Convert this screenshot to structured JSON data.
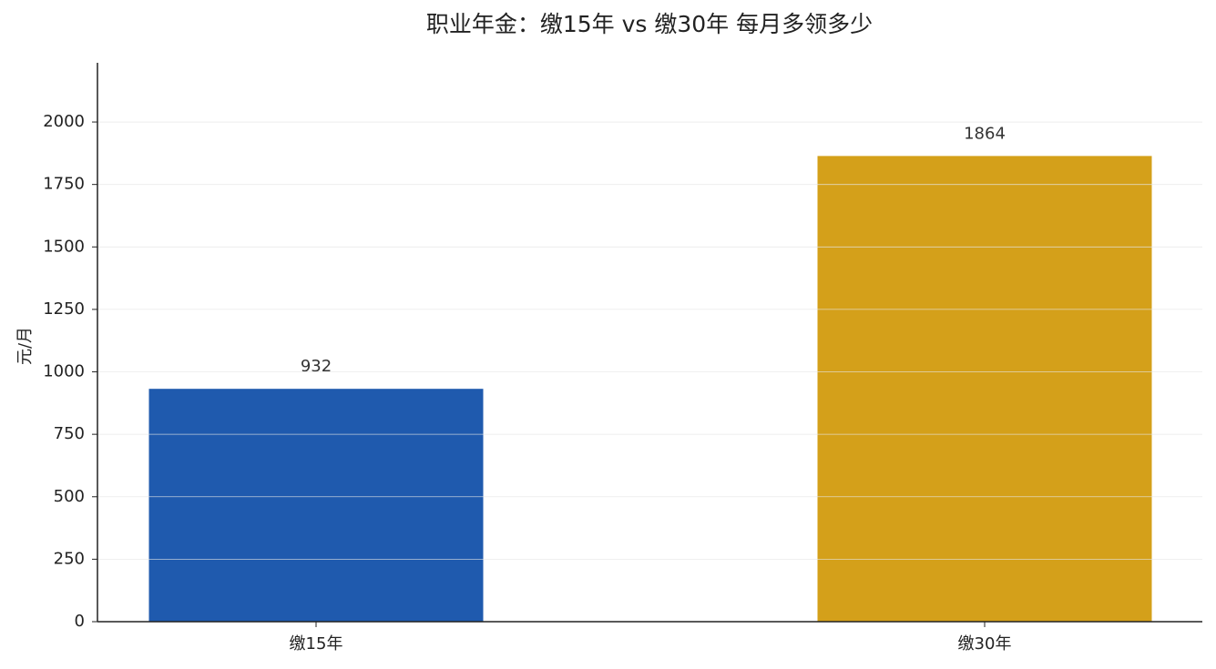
{
  "chart_data": {
    "type": "bar",
    "title": "职业年金：缴15年 vs 缴30年 每月多领多少",
    "y_label": "元/月",
    "categories": [
      "缴15年",
      "缴30年"
    ],
    "values": [
      932,
      1864
    ],
    "colors": [
      "#1f5aae",
      "#d4a01a"
    ],
    "ylim": [
      0,
      2237
    ],
    "yticks": [
      0,
      250,
      500,
      750,
      1000,
      1250,
      1500,
      1750,
      2000
    ],
    "grid": true
  }
}
